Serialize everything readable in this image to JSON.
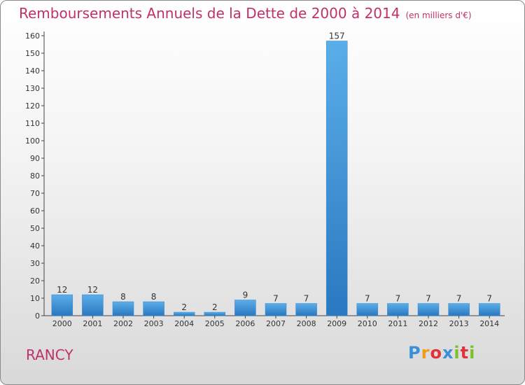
{
  "header": {
    "title": "Remboursements Annuels de la Dette de 2000 à 2014",
    "unit": "(en milliers d'€)"
  },
  "footer": {
    "place": "RANCY",
    "logo": "Proxiti"
  },
  "colors": {
    "title": "#c0306a",
    "bar_top": "#5aaee9",
    "bar_bottom": "#2a78c0"
  },
  "chart_data": {
    "type": "bar",
    "title": "Remboursements Annuels de la Dette de 2000 à 2014",
    "subtitle": "(en milliers d'€)",
    "categories": [
      "2000",
      "2001",
      "2002",
      "2003",
      "2004",
      "2005",
      "2006",
      "2007",
      "2008",
      "2009",
      "2010",
      "2011",
      "2012",
      "2013",
      "2014"
    ],
    "values": [
      12,
      12,
      8,
      8,
      2,
      2,
      9,
      7,
      7,
      157,
      7,
      7,
      7,
      7,
      7
    ],
    "ylim": [
      0,
      160
    ],
    "yticks": [
      0,
      10,
      20,
      30,
      40,
      50,
      60,
      70,
      80,
      90,
      100,
      110,
      120,
      130,
      140,
      150,
      160
    ],
    "grid": false,
    "data_labels": true
  }
}
